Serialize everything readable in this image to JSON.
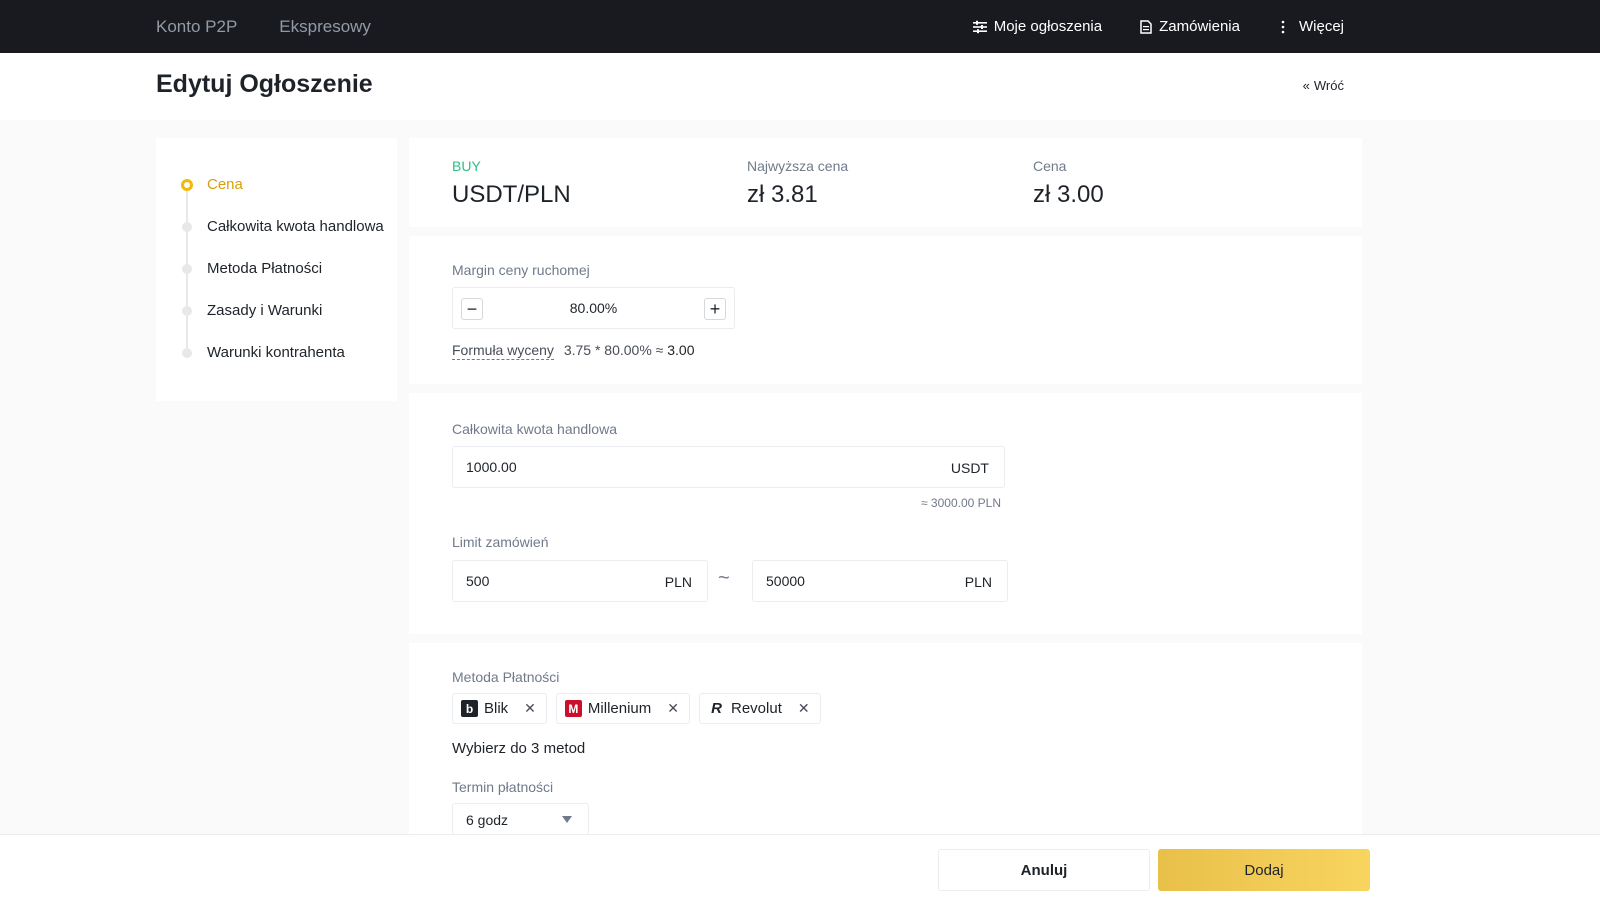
{
  "topnav": {
    "left_items": [
      "Konto P2P",
      "Ekspresowy"
    ],
    "my_ads": "Moje ogłoszenia",
    "orders": "Zamówienia",
    "more": "Więcej"
  },
  "header": {
    "title": "Edytuj Ogłoszenie",
    "back": "Wróć"
  },
  "steps": [
    {
      "label": "Cena",
      "active": true
    },
    {
      "label": "Całkowita kwota handlowa"
    },
    {
      "label": "Metoda Płatności"
    },
    {
      "label": "Zasady i Warunki"
    },
    {
      "label": "Warunki kontrahenta"
    }
  ],
  "summary": {
    "side": "BUY",
    "pair": "USDT/PLN",
    "highest_label": "Najwyższa cena",
    "highest_value": "zł 3.81",
    "price_label": "Cena",
    "price_value": "zł 3.00"
  },
  "margin": {
    "label": "Margin ceny ruchomej",
    "value": "80.00%",
    "formula_label": "Formuła wyceny",
    "formula_calc": "3.75 * 80.00% ≈",
    "formula_result": "3.00"
  },
  "amount": {
    "label": "Całkowita kwota handlowa",
    "value": "1000.00",
    "unit": "USDT",
    "approx": "≈ 3000.00 PLN"
  },
  "limit": {
    "label": "Limit zamówień",
    "min": "500",
    "min_unit": "PLN",
    "separator": "~",
    "max": "50000",
    "max_unit": "PLN"
  },
  "payment": {
    "label": "Metoda Płatności",
    "methods": [
      {
        "name": "Blik",
        "icon": "blik-icon"
      },
      {
        "name": "Millenium",
        "icon": "millenium-icon"
      },
      {
        "name": "Revolut",
        "icon": "revolut-icon"
      }
    ],
    "hint": "Wybierz do 3 metod",
    "term_label": "Termin płatności",
    "term_value": "6 godz"
  },
  "footer": {
    "cancel": "Anuluj",
    "add": "Dodaj"
  }
}
